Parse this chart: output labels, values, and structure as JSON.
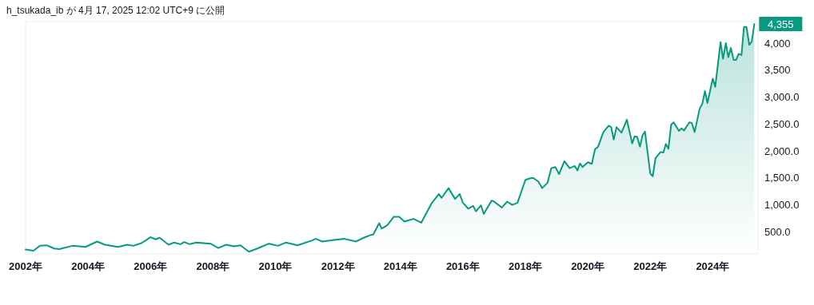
{
  "chart_data": {
    "type": "area",
    "color": "#089981",
    "x": [
      2002.0,
      2002.25,
      2002.46,
      2002.67,
      2002.92,
      2003.08,
      2003.5,
      2003.92,
      2004.29,
      2004.54,
      2004.96,
      2005.25,
      2005.45,
      2005.71,
      2006.0,
      2006.17,
      2006.29,
      2006.58,
      2006.75,
      2006.96,
      2007.08,
      2007.25,
      2007.46,
      2007.92,
      2008.17,
      2008.42,
      2008.67,
      2008.88,
      2009.15,
      2009.42,
      2009.79,
      2010.08,
      2010.33,
      2010.71,
      2011.17,
      2011.29,
      2011.5,
      2011.88,
      2012.21,
      2012.58,
      2012.83,
      2013.04,
      2013.13,
      2013.32,
      2013.4,
      2013.58,
      2013.79,
      2013.96,
      2014.13,
      2014.42,
      2014.67,
      2015.0,
      2015.23,
      2015.32,
      2015.54,
      2015.75,
      2015.9,
      2016.0,
      2016.17,
      2016.33,
      2016.42,
      2016.58,
      2016.67,
      2016.92,
      2017.0,
      2017.25,
      2017.42,
      2017.58,
      2017.75,
      2018.0,
      2018.13,
      2018.25,
      2018.42,
      2018.54,
      2018.71,
      2018.83,
      2018.96,
      2019.08,
      2019.25,
      2019.42,
      2019.58,
      2019.67,
      2019.75,
      2019.83,
      2020.0,
      2020.13,
      2020.23,
      2020.33,
      2020.5,
      2020.67,
      2020.75,
      2020.83,
      2020.92,
      2021.08,
      2021.25,
      2021.42,
      2021.5,
      2021.58,
      2021.67,
      2021.75,
      2021.83,
      2022.0,
      2022.08,
      2022.17,
      2022.33,
      2022.42,
      2022.5,
      2022.58,
      2022.67,
      2022.75,
      2022.92,
      2023.0,
      2023.08,
      2023.25,
      2023.33,
      2023.42,
      2023.58,
      2023.67,
      2023.75,
      2023.83,
      2024.0,
      2024.08,
      2024.25,
      2024.33,
      2024.42,
      2024.5,
      2024.58,
      2024.67,
      2024.75,
      2024.83,
      2024.92,
      2025.0,
      2025.08,
      2025.17,
      2025.25,
      2025.33
    ],
    "values": [
      170,
      150,
      240,
      250,
      190,
      180,
      240,
      220,
      320,
      260,
      220,
      260,
      240,
      290,
      400,
      360,
      390,
      260,
      300,
      270,
      310,
      270,
      300,
      280,
      200,
      260,
      230,
      250,
      130,
      190,
      280,
      240,
      300,
      250,
      340,
      370,
      320,
      350,
      370,
      320,
      390,
      440,
      450,
      660,
      560,
      620,
      780,
      780,
      690,
      740,
      670,
      1030,
      1200,
      1130,
      1310,
      1110,
      1200,
      1040,
      930,
      980,
      880,
      990,
      830,
      1080,
      1060,
      950,
      1060,
      1000,
      1040,
      1460,
      1490,
      1500,
      1430,
      1310,
      1410,
      1680,
      1700,
      1570,
      1810,
      1680,
      1720,
      1640,
      1770,
      1700,
      1790,
      1760,
      2030,
      2080,
      2350,
      2470,
      2440,
      2210,
      2440,
      2340,
      2580,
      2140,
      2270,
      2260,
      2080,
      2290,
      2360,
      1580,
      1530,
      1870,
      1980,
      1970,
      2130,
      2040,
      2490,
      2530,
      2370,
      2420,
      2380,
      2530,
      2520,
      2350,
      2780,
      2880,
      3110,
      2890,
      3340,
      3190,
      4020,
      3710,
      4000,
      3740,
      3910,
      3690,
      3690,
      3800,
      3780,
      4300,
      4300,
      3970,
      4030,
      4355
    ],
    "xlim": [
      2002.0,
      2025.45
    ],
    "ylim": [
      90,
      4400
    ],
    "xticks": [
      {
        "value": 2002,
        "label": "2002年"
      },
      {
        "value": 2004,
        "label": "2004年"
      },
      {
        "value": 2006,
        "label": "2006年"
      },
      {
        "value": 2008,
        "label": "2008年"
      },
      {
        "value": 2010,
        "label": "2010年"
      },
      {
        "value": 2012,
        "label": "2012年"
      },
      {
        "value": 2014,
        "label": "2014年"
      },
      {
        "value": 2016,
        "label": "2016年"
      },
      {
        "value": 2018,
        "label": "2018年"
      },
      {
        "value": 2020,
        "label": "2020年"
      },
      {
        "value": 2022,
        "label": "2022年"
      },
      {
        "value": 2024,
        "label": "2024年"
      }
    ],
    "yticks": [
      {
        "value": 500,
        "label": "500.0"
      },
      {
        "value": 1000,
        "label": "1,000.0"
      },
      {
        "value": 1500,
        "label": "1,500.0"
      },
      {
        "value": 2000,
        "label": "2,000.0"
      },
      {
        "value": 2500,
        "label": "2,500.0"
      },
      {
        "value": 3000,
        "label": "3,000.0"
      },
      {
        "value": 3500,
        "label": "3,500"
      },
      {
        "value": 4000,
        "label": "4,000"
      }
    ],
    "annotations": [
      {
        "text": "4,355",
        "x": 2025.33,
        "y": 4355
      },
      "h_tsukada_ib が 4月 17, 2025 12:02 UTC+9 に公開"
    ]
  }
}
